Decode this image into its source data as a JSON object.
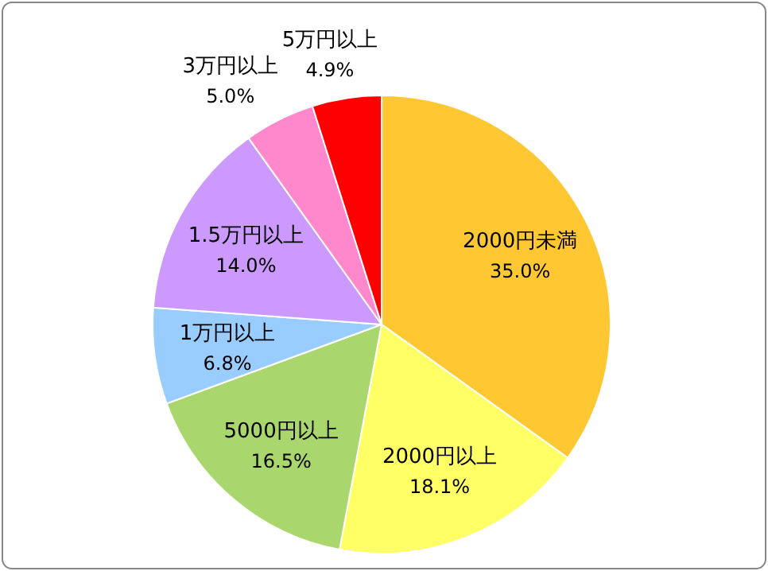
{
  "chart_data": {
    "type": "pie",
    "categories": [
      "2000円未満",
      "2000円以上",
      "5000円以上",
      "1万円以上",
      "1.5万円以上",
      "3万円以上",
      "5万円以上"
    ],
    "values": [
      35.0,
      18.1,
      16.5,
      6.8,
      14.0,
      5.0,
      4.9
    ],
    "colors": [
      "#ffc832",
      "#ffff66",
      "#a9d66d",
      "#99ccff",
      "#cc99ff",
      "#ff88cc",
      "#ff0000"
    ],
    "value_labels": [
      "35.0%",
      "18.1%",
      "16.5%",
      "6.8%",
      "14.0%",
      "5.0%",
      "4.9%"
    ],
    "legend": false
  }
}
